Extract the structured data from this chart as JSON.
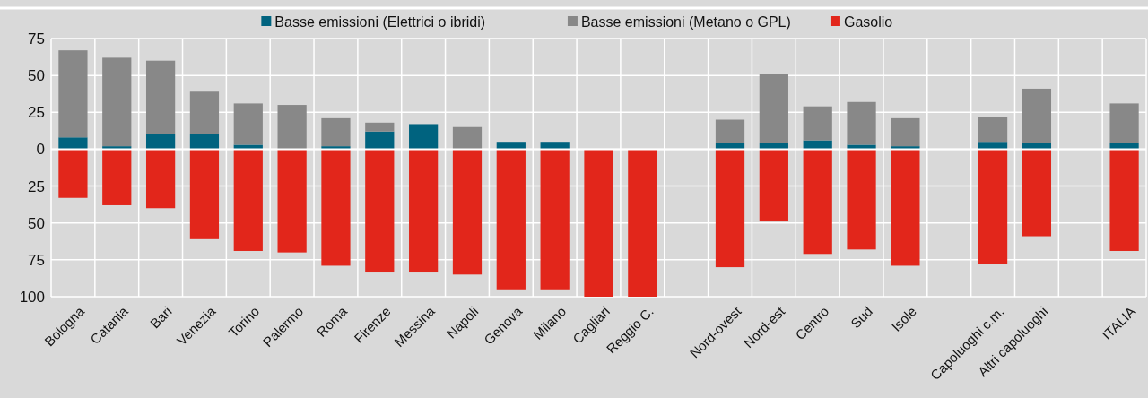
{
  "chart_data": {
    "type": "bar",
    "stacked": true,
    "legend": "top",
    "grid": true,
    "categories": [
      "Bologna",
      "Catania",
      "Bari",
      "Venezia",
      "Torino",
      "Palermo",
      "Roma",
      "Firenze",
      "Messina",
      "Napoli",
      "Genova",
      "Milano",
      "Cagliari",
      "Reggio C.",
      null,
      "Nord-ovest",
      "Nord-est",
      "Centro",
      "Sud",
      "Isole",
      null,
      "Capoluoghi c.m.",
      "Altri capoluoghi",
      null,
      "ITALIA"
    ],
    "series": [
      {
        "name": "Basse emissioni (Elettrici o ibridi)",
        "color": "#00637f",
        "values": [
          8,
          2,
          10,
          10,
          3,
          0,
          2,
          12,
          17,
          0,
          5,
          5,
          0,
          0,
          null,
          4,
          4,
          6,
          3,
          2,
          null,
          5,
          4,
          null,
          4
        ]
      },
      {
        "name": "Basse emissioni (Metano o GPL)",
        "color": "#888888",
        "values": [
          59,
          60,
          50,
          29,
          28,
          30,
          19,
          6,
          0,
          15,
          0,
          0,
          0,
          0,
          null,
          16,
          47,
          23,
          29,
          19,
          null,
          17,
          37,
          null,
          27
        ]
      },
      {
        "name": "Gasolio",
        "color": "#e2261b",
        "values": [
          -33,
          -38,
          -40,
          -61,
          -69,
          -70,
          -79,
          -83,
          -83,
          -85,
          -95,
          -95,
          -100,
          -100,
          null,
          -80,
          -49,
          -71,
          -68,
          -79,
          null,
          -78,
          -59,
          null,
          -69
        ]
      }
    ],
    "ylim": [
      -100,
      75
    ],
    "yticks": [
      {
        "value": -100,
        "label": "100"
      },
      {
        "value": -75,
        "label": "75"
      },
      {
        "value": -50,
        "label": "50"
      },
      {
        "value": -25,
        "label": "25"
      },
      0,
      25,
      50,
      75
    ]
  }
}
